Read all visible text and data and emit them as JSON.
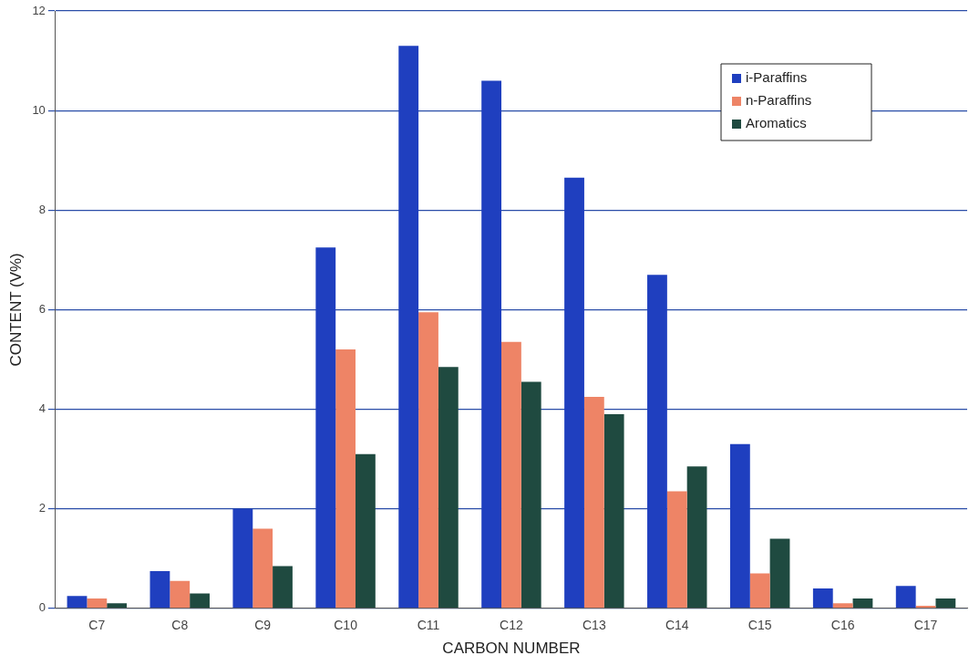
{
  "chart_data": {
    "type": "bar",
    "xlabel": "CARBON NUMBER",
    "ylabel": "CONTENT (V%)",
    "categories": [
      "C7",
      "C8",
      "C9",
      "C10",
      "C11",
      "C12",
      "C13",
      "C14",
      "C15",
      "C16",
      "C17"
    ],
    "series": [
      {
        "name": "i-Paraffins",
        "color": "#1f3fbf",
        "values": [
          0.25,
          0.75,
          2.0,
          7.25,
          11.3,
          10.6,
          8.65,
          6.7,
          3.3,
          0.4,
          0.45
        ]
      },
      {
        "name": "n-Paraffins",
        "color": "#ee8466",
        "values": [
          0.2,
          0.55,
          1.6,
          5.2,
          5.95,
          5.35,
          4.25,
          2.35,
          0.7,
          0.1,
          0.05
        ]
      },
      {
        "name": "Aromatics",
        "color": "#1f4a40",
        "values": [
          0.1,
          0.3,
          0.85,
          3.1,
          4.85,
          4.55,
          3.9,
          2.85,
          1.4,
          0.2,
          0.2
        ]
      }
    ],
    "ylim": [
      0,
      12
    ],
    "yticks": [
      0,
      2,
      4,
      6,
      8,
      10,
      12
    ],
    "grid": "y",
    "legend": "top right"
  }
}
